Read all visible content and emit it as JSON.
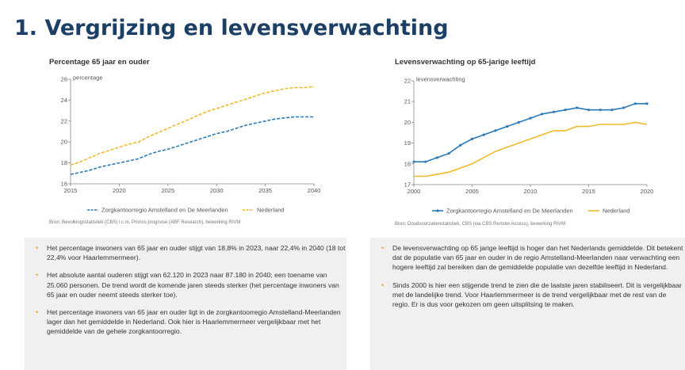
{
  "page": {
    "title": "1. Vergrijzing en levensverwachting"
  },
  "charts": {
    "left": {
      "source": "Bron: Bevolkingsstatistiek (CBS) i.c.m. Primos prognose (ABF Research), bewerking RIVM"
    },
    "right": {
      "source": "Bron: Doodsoorzakenstatistiek, CBS (via CBS Remote Access), bewerking RIVM"
    }
  },
  "chart_data": [
    {
      "type": "line",
      "title": "Percentage 65 jaar en ouder",
      "ylabel": "percentage",
      "xlim": [
        2015,
        2040
      ],
      "ylim": [
        16,
        26
      ],
      "xticks": [
        2015,
        2020,
        2025,
        2030,
        2035,
        2040
      ],
      "yticks": [
        16,
        18,
        20,
        22,
        24,
        26
      ],
      "grid": false,
      "legend": "bottom",
      "series": [
        {
          "name": "Zorgkantoorregio Amstelland en De Meerlanden",
          "style": "dashed",
          "color": "#2a7ab8",
          "x": [
            2015,
            2016,
            2017,
            2018,
            2019,
            2020,
            2021,
            2022,
            2023,
            2024,
            2025,
            2026,
            2027,
            2028,
            2029,
            2030,
            2031,
            2032,
            2033,
            2034,
            2035,
            2036,
            2037,
            2038,
            2039,
            2040
          ],
          "y": [
            16.9,
            17.1,
            17.3,
            17.6,
            17.8,
            18.0,
            18.2,
            18.4,
            18.8,
            19.1,
            19.3,
            19.6,
            19.9,
            20.2,
            20.5,
            20.8,
            21.0,
            21.3,
            21.6,
            21.8,
            22.0,
            22.2,
            22.3,
            22.4,
            22.4,
            22.4
          ]
        },
        {
          "name": "Nederland",
          "style": "dashed",
          "color": "#f2b92c",
          "x": [
            2015,
            2016,
            2017,
            2018,
            2019,
            2020,
            2021,
            2022,
            2023,
            2024,
            2025,
            2026,
            2027,
            2028,
            2029,
            2030,
            2031,
            2032,
            2033,
            2034,
            2035,
            2036,
            2037,
            2038,
            2039,
            2040
          ],
          "y": [
            17.8,
            18.1,
            18.5,
            18.9,
            19.2,
            19.5,
            19.8,
            20.0,
            20.5,
            20.9,
            21.3,
            21.7,
            22.1,
            22.5,
            22.9,
            23.2,
            23.5,
            23.8,
            24.1,
            24.4,
            24.7,
            24.9,
            25.1,
            25.2,
            25.2,
            25.3
          ]
        }
      ]
    },
    {
      "type": "line",
      "title": "Levensverwachting op 65-jarige leeftijd",
      "ylabel": "levensverwachting",
      "xlim": [
        2000,
        2020
      ],
      "ylim": [
        17,
        22
      ],
      "xticks": [
        2000,
        2005,
        2010,
        2015,
        2020
      ],
      "yticks": [
        17,
        18,
        19,
        20,
        21,
        22
      ],
      "grid": false,
      "legend": "bottom",
      "series": [
        {
          "name": "Zorgkantoorregio Amstelland en De Meerlanden",
          "style": "solid-markers",
          "color": "#2a7ab8",
          "x": [
            2000,
            2001,
            2002,
            2003,
            2004,
            2005,
            2006,
            2007,
            2008,
            2009,
            2010,
            2011,
            2012,
            2013,
            2014,
            2015,
            2016,
            2017,
            2018,
            2019,
            2020
          ],
          "y": [
            18.1,
            18.1,
            18.3,
            18.5,
            18.9,
            19.2,
            19.4,
            19.6,
            19.8,
            20.0,
            20.2,
            20.4,
            20.5,
            20.6,
            20.7,
            20.6,
            20.6,
            20.6,
            20.7,
            20.9,
            20.9
          ]
        },
        {
          "name": "Nederland",
          "style": "solid",
          "color": "#f2b92c",
          "x": [
            2000,
            2001,
            2002,
            2003,
            2004,
            2005,
            2006,
            2007,
            2008,
            2009,
            2010,
            2011,
            2012,
            2013,
            2014,
            2015,
            2016,
            2017,
            2018,
            2019,
            2020
          ],
          "y": [
            17.4,
            17.4,
            17.5,
            17.6,
            17.8,
            18.0,
            18.3,
            18.6,
            18.8,
            19.0,
            19.2,
            19.4,
            19.6,
            19.6,
            19.8,
            19.8,
            19.9,
            19.9,
            19.9,
            20.0,
            19.9
          ]
        }
      ]
    }
  ],
  "panels": {
    "left": [
      "Het percentage inwoners van 65 jaar en ouder stijgt van 18,8% in 2023, naar 22,4% in 2040 (18 tot 22,4% voor Haarlemmermeer).",
      "Het absolute aantal ouderen stijgt van 62.120 in 2023 naar 87.180 in 2040; een toename van 25.060 personen. De trend wordt de komende jaren steeds sterker (het percentage inwoners van 65 jaar en ouder neemt steeds sterker toe).",
      "Het percentage inwoners van 65 jaar en ouder ligt in de zorgkantoorregio Amstelland-Meerlanden lager dan het gemiddelde in Nederland. Ook hier is Haarlemmermeer vergelijkbaar met het gemiddelde van de gehele zorgkantoorregio."
    ],
    "right": [
      "De levensverwachting op 65 jarige leeftijd is hoger dan het Nederlands gemiddelde. Dit betekent dat de populatie van 65 jaar en ouder in de regio Amstelland-Meerlanden naar verwachting een hogere leeftijd zal bereiken dan de gemiddelde populatie van dezelfde leeftijd in Nederland.",
      "Sinds 2000 is hier een stijgende trend te zien die de laatste jaren stabiliseert. Dit is vergelijkbaar met de landelijke trend. Voor Haarlemmermeer is de trend vergelijkbaar met de rest van de regio. Er is dus voor gekozen om geen uitsplitsing te maken."
    ]
  }
}
